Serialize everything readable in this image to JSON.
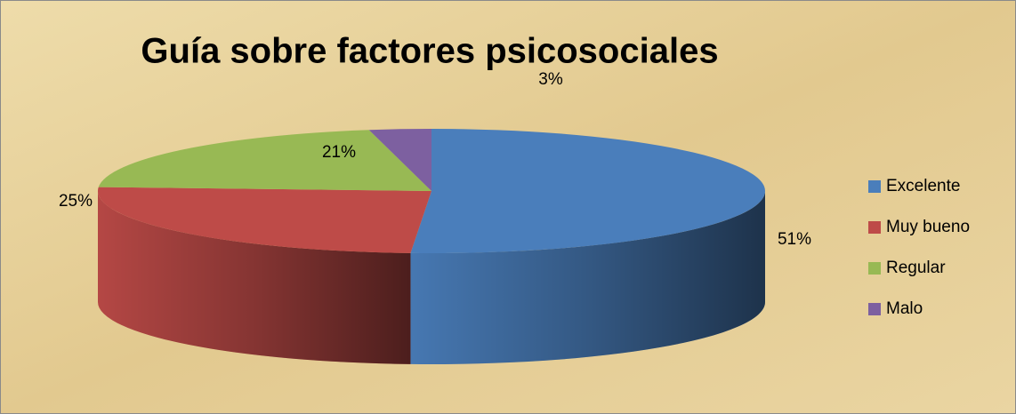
{
  "chart_data": {
    "type": "pie3d",
    "title": "Guía sobre factores psicosociales",
    "categories": [
      "Excelente",
      "Muy bueno",
      "Regular",
      "Malo"
    ],
    "values": [
      51,
      25,
      21,
      3
    ],
    "value_labels": [
      "51%",
      "25%",
      "21%",
      "3%"
    ],
    "colors": [
      "#4a7ebb",
      "#be4b48",
      "#98b954",
      "#7d60a0"
    ],
    "legend": "right"
  }
}
